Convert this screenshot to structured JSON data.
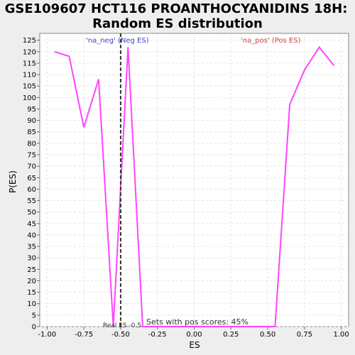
{
  "chart_data": {
    "type": "line",
    "title_line1": "GSE109607 HCT116 PROANTHOCYANIDINS 18H:",
    "title_line2": "Random ES distribution",
    "xlabel": "ES",
    "ylabel": "P(ES)",
    "xlim": [
      -1.05,
      1.05
    ],
    "ylim": [
      0,
      128
    ],
    "xticks": [
      -1.0,
      -0.75,
      -0.5,
      -0.25,
      0.0,
      0.25,
      0.5,
      0.75,
      1.0
    ],
    "xtick_labels": [
      "-1.00",
      "-0.75",
      "-0.50",
      "-0.25",
      "0.00",
      "0.25",
      "0.50",
      "0.75",
      "1.00"
    ],
    "yticks": [
      0,
      5,
      10,
      15,
      20,
      25,
      30,
      35,
      40,
      45,
      50,
      55,
      60,
      65,
      70,
      75,
      80,
      85,
      90,
      95,
      100,
      105,
      110,
      115,
      120,
      125
    ],
    "grid": true,
    "series": [
      {
        "color": "#ff44ff",
        "x": [
          -0.95,
          -0.85,
          -0.75,
          -0.65,
          -0.55,
          -0.45,
          -0.35,
          -0.25,
          -0.15,
          -0.05,
          0.05,
          0.15,
          0.25,
          0.35,
          0.45,
          0.55,
          0.65,
          0.75,
          0.85,
          0.95
        ],
        "y": [
          120,
          118,
          87,
          108,
          0,
          122,
          0,
          0,
          0,
          0,
          0,
          0,
          0,
          0,
          0,
          0,
          97,
          112,
          122,
          114
        ]
      }
    ],
    "real_es": -0.5,
    "real_es_label": "Real ES -0.5",
    "neg_label": "'na_neg' (Neg ES)",
    "neg_color": "#4444cc",
    "pos_label": "'na_pos' (Pos ES)",
    "pos_color": "#cc4444",
    "sets_label": "Sets with pos scores: 45%"
  }
}
